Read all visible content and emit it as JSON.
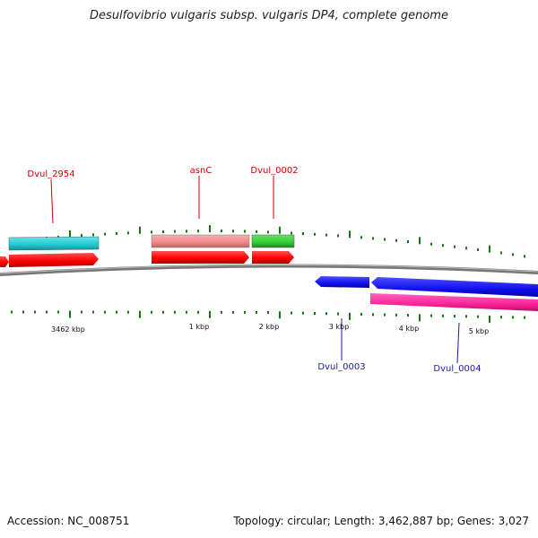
{
  "title": "Desulfovibrio vulgaris subsp. vulgaris DP4, complete genome",
  "footer": {
    "accession": "Accession: NC_008751",
    "summary": "Topology: circular; Length: 3,462,887 bp; Genes: 3,027"
  },
  "scale_labels": [
    "3462 kbp",
    "1 kbp",
    "2 kbp",
    "3 kbp",
    "4 kbp",
    "5 kbp"
  ],
  "gene_labels": {
    "dvul_2954": "Dvul_2954",
    "asnC": "asnC",
    "dvul_0002": "Dvul_0002",
    "dvul_0003": "Dvul_0003",
    "dvul_0004": "Dvul_0004"
  },
  "colors": {
    "forward_label": "#cc0000",
    "reverse_label": "#1a1aa8",
    "cds": "#ff0000",
    "gene_cyan": "#22c8d0",
    "gene_pink": "#f08888",
    "gene_green": "#33cc33",
    "gene_blue": "#1111ee",
    "gene_magenta": "#ff2299",
    "tick": "#117711",
    "backbone": "#777777"
  }
}
